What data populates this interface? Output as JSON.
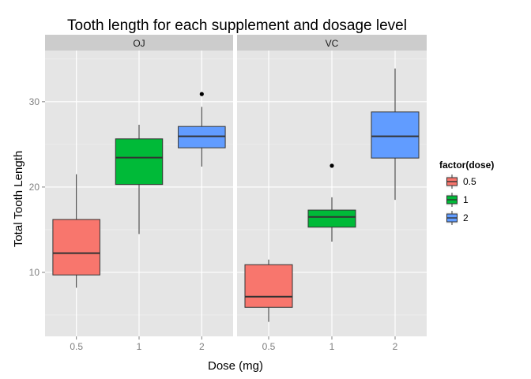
{
  "chart_data": {
    "type": "boxplot",
    "title": "Tooth length for each supplement and dosage level",
    "xlabel": "Dose (mg)",
    "ylabel": "Total Tooth Length",
    "ylim": [
      2.5,
      36.0
    ],
    "yticks": [
      10,
      20,
      30
    ],
    "grid": true,
    "facets": [
      "OJ",
      "VC"
    ],
    "categories": [
      "0.5",
      "1",
      "2"
    ],
    "legend": {
      "title": "factor(dose)",
      "position": "right",
      "entries": [
        {
          "label": "0.5",
          "color": "#F8766D"
        },
        {
          "label": "1",
          "color": "#00BA38"
        },
        {
          "label": "2",
          "color": "#619CFF"
        }
      ]
    },
    "boxes": [
      {
        "facet": "OJ",
        "dose": "0.5",
        "lower_whisker": 8.2,
        "q1": 9.7,
        "median": 12.25,
        "q3": 16.2,
        "upper_whisker": 21.5,
        "outliers": []
      },
      {
        "facet": "OJ",
        "dose": "1",
        "lower_whisker": 14.5,
        "q1": 20.3,
        "median": 23.45,
        "q3": 25.65,
        "upper_whisker": 27.3,
        "outliers": []
      },
      {
        "facet": "OJ",
        "dose": "2",
        "lower_whisker": 22.4,
        "q1": 24.6,
        "median": 25.95,
        "q3": 27.1,
        "upper_whisker": 29.4,
        "outliers": [
          30.9
        ]
      },
      {
        "facet": "VC",
        "dose": "0.5",
        "lower_whisker": 4.2,
        "q1": 5.9,
        "median": 7.15,
        "q3": 10.9,
        "upper_whisker": 11.5,
        "outliers": []
      },
      {
        "facet": "VC",
        "dose": "1",
        "lower_whisker": 13.6,
        "q1": 15.3,
        "median": 16.5,
        "q3": 17.3,
        "upper_whisker": 18.8,
        "outliers": [
          22.5
        ]
      },
      {
        "facet": "VC",
        "dose": "2",
        "lower_whisker": 18.5,
        "q1": 23.4,
        "median": 25.95,
        "q3": 28.8,
        "upper_whisker": 33.9,
        "outliers": []
      }
    ]
  }
}
